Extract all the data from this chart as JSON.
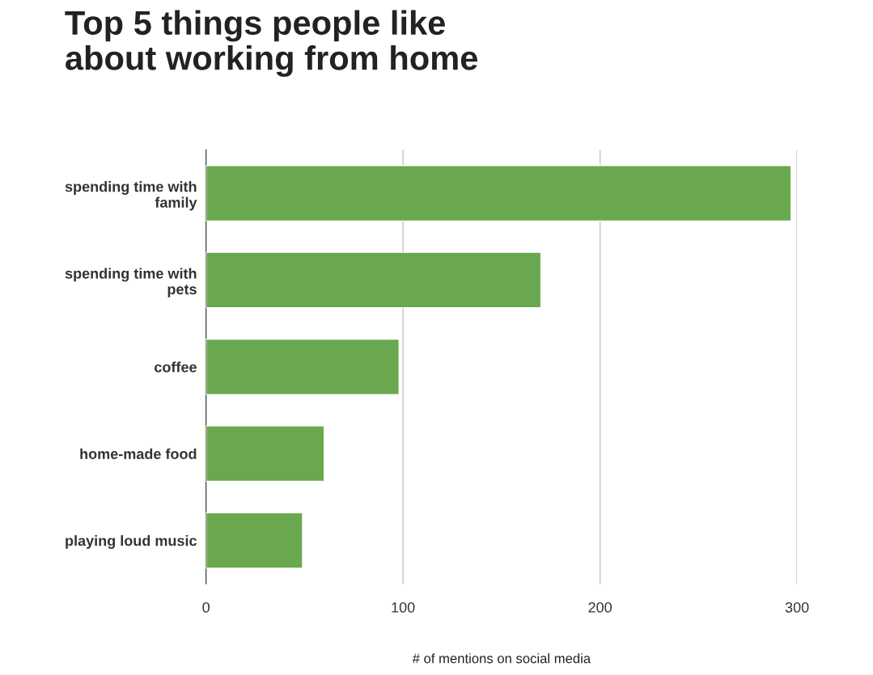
{
  "chart_data": {
    "type": "bar",
    "orientation": "horizontal",
    "title": "Top 5 things people like\nabout working from home",
    "xlabel": "# of mentions on social media",
    "categories": [
      "spending time with\nfamily",
      "spending time with\npets",
      "coffee",
      "home-made food",
      "playing loud music"
    ],
    "values": [
      297,
      170,
      98,
      60,
      49
    ],
    "color": "#6aa84f",
    "xlim": [
      0,
      300
    ],
    "xticks": [
      0,
      100,
      200,
      300
    ],
    "grid": "x"
  }
}
